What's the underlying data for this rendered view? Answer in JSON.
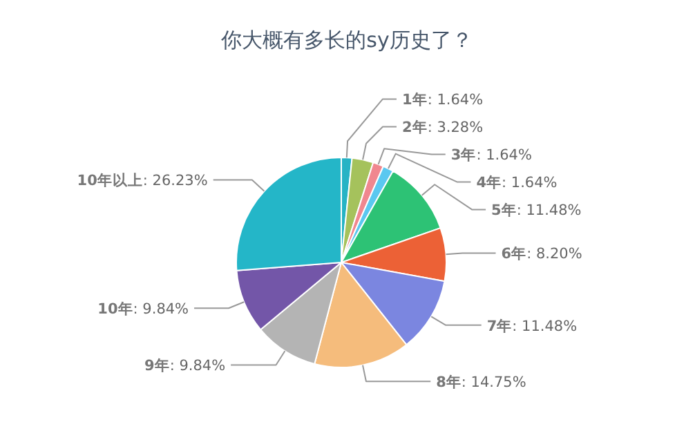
{
  "chart_data": {
    "type": "pie",
    "title": "你大概有多长的sy历史了？",
    "categories": [
      "1年",
      "2年",
      "3年",
      "4年",
      "5年",
      "6年",
      "7年",
      "8年",
      "9年",
      "10年",
      "10年以上"
    ],
    "values": [
      1.64,
      3.28,
      1.64,
      1.64,
      11.48,
      8.2,
      11.48,
      14.75,
      9.84,
      9.84,
      26.23
    ],
    "value_labels": [
      ": 1.64%",
      ": 3.28%",
      ": 1.64%",
      ": 1.64%",
      ": 11.48%",
      ": 8.20%",
      ": 11.48%",
      ": 14.75%",
      ": 9.84%",
      ": 9.84%",
      ": 26.23%"
    ],
    "colors": [
      "#26b3c5",
      "#a5c25c",
      "#f0878f",
      "#5ac8f0",
      "#2dc275",
      "#ec6136",
      "#7b86e0",
      "#f5bc7c",
      "#b4b4b4",
      "#7356a8",
      "#24b6c8"
    ]
  }
}
